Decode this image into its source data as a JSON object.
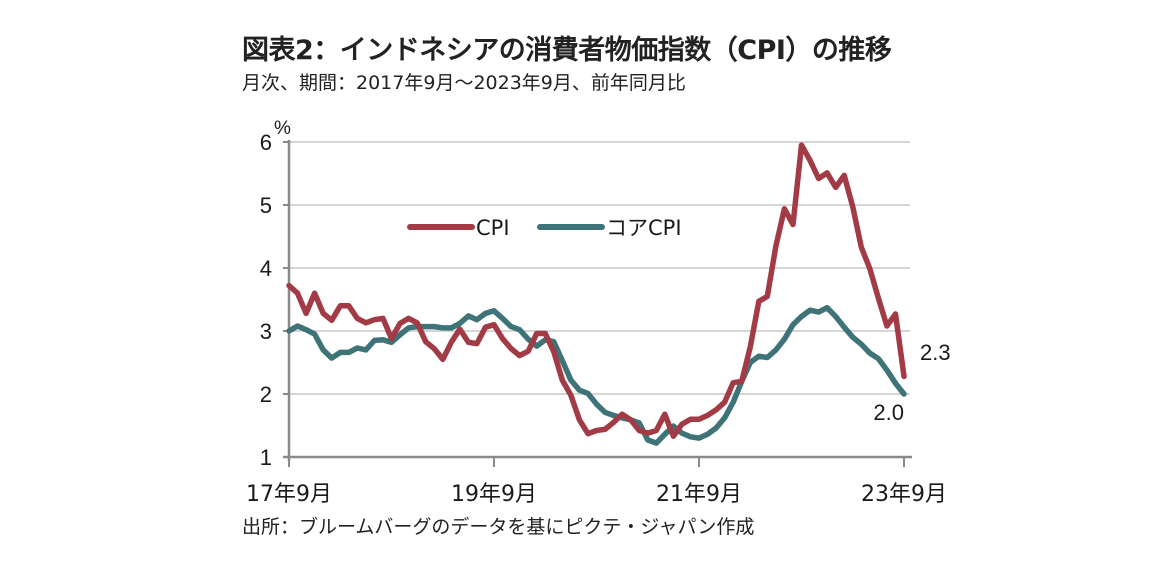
{
  "header": {
    "title": "図表2：インドネシアの消費者物価指数（CPI）の推移",
    "subtitle": "月次、期間：2017年9月～2023年9月、前年同月比"
  },
  "footer": {
    "source": "出所：ブルームバーグのデータを基にピクテ・ジャパン作成"
  },
  "chart_data": {
    "type": "line",
    "title": "図表2：インドネシアの消費者物価指数（CPI）の推移",
    "subtitle": "月次、期間：2017年9月～2023年9月、前年同月比",
    "xlabel": "",
    "ylabel": "%",
    "ylim": [
      1,
      6
    ],
    "yticks": [
      "1",
      "2",
      "3",
      "4",
      "5",
      "6"
    ],
    "x_range": [
      "2017-09",
      "2023-09"
    ],
    "xtick_labels": [
      "17年9月",
      "19年9月",
      "21年9月",
      "23年9月"
    ],
    "xtick_month_index": [
      0,
      24,
      48,
      72
    ],
    "grid": "horizontal",
    "legend_position": "top-left inside",
    "series": [
      {
        "name": "CPI",
        "color": "#A23B45",
        "end_label": "2.3",
        "values": [
          3.72,
          3.6,
          3.28,
          3.6,
          3.28,
          3.17,
          3.4,
          3.4,
          3.2,
          3.13,
          3.18,
          3.2,
          2.88,
          3.12,
          3.2,
          3.13,
          2.83,
          2.72,
          2.55,
          2.82,
          3.03,
          2.82,
          2.8,
          3.06,
          3.1,
          2.88,
          2.72,
          2.61,
          2.68,
          2.96,
          2.96,
          2.67,
          2.22,
          1.98,
          1.59,
          1.37,
          1.42,
          1.44,
          1.55,
          1.68,
          1.59,
          1.42,
          1.38,
          1.42,
          1.68,
          1.33,
          1.52,
          1.6,
          1.6,
          1.66,
          1.75,
          1.87,
          2.18,
          2.2,
          2.75,
          3.47,
          3.55,
          4.35,
          4.94,
          4.69,
          5.95,
          5.71,
          5.42,
          5.51,
          5.28,
          5.47,
          4.97,
          4.33,
          3.99,
          3.52,
          3.08,
          3.27,
          2.28
        ]
      },
      {
        "name": "コアCPI",
        "color": "#3E7378",
        "end_label": "2.0",
        "values": [
          3.0,
          3.08,
          3.02,
          2.95,
          2.7,
          2.57,
          2.66,
          2.66,
          2.73,
          2.7,
          2.85,
          2.86,
          2.82,
          2.94,
          3.05,
          3.07,
          3.07,
          3.07,
          3.05,
          3.05,
          3.12,
          3.24,
          3.18,
          3.28,
          3.32,
          3.2,
          3.07,
          3.02,
          2.87,
          2.76,
          2.86,
          2.83,
          2.53,
          2.22,
          2.06,
          2.01,
          1.84,
          1.71,
          1.66,
          1.62,
          1.59,
          1.54,
          1.27,
          1.22,
          1.36,
          1.49,
          1.38,
          1.32,
          1.3,
          1.36,
          1.46,
          1.62,
          1.87,
          2.2,
          2.5,
          2.6,
          2.58,
          2.7,
          2.87,
          3.1,
          3.23,
          3.33,
          3.3,
          3.37,
          3.23,
          3.06,
          2.9,
          2.79,
          2.65,
          2.56,
          2.38,
          2.17,
          2.0
        ]
      }
    ],
    "colors": {
      "grid": "#D6D6D6",
      "axis": "#8A8A8A"
    }
  }
}
